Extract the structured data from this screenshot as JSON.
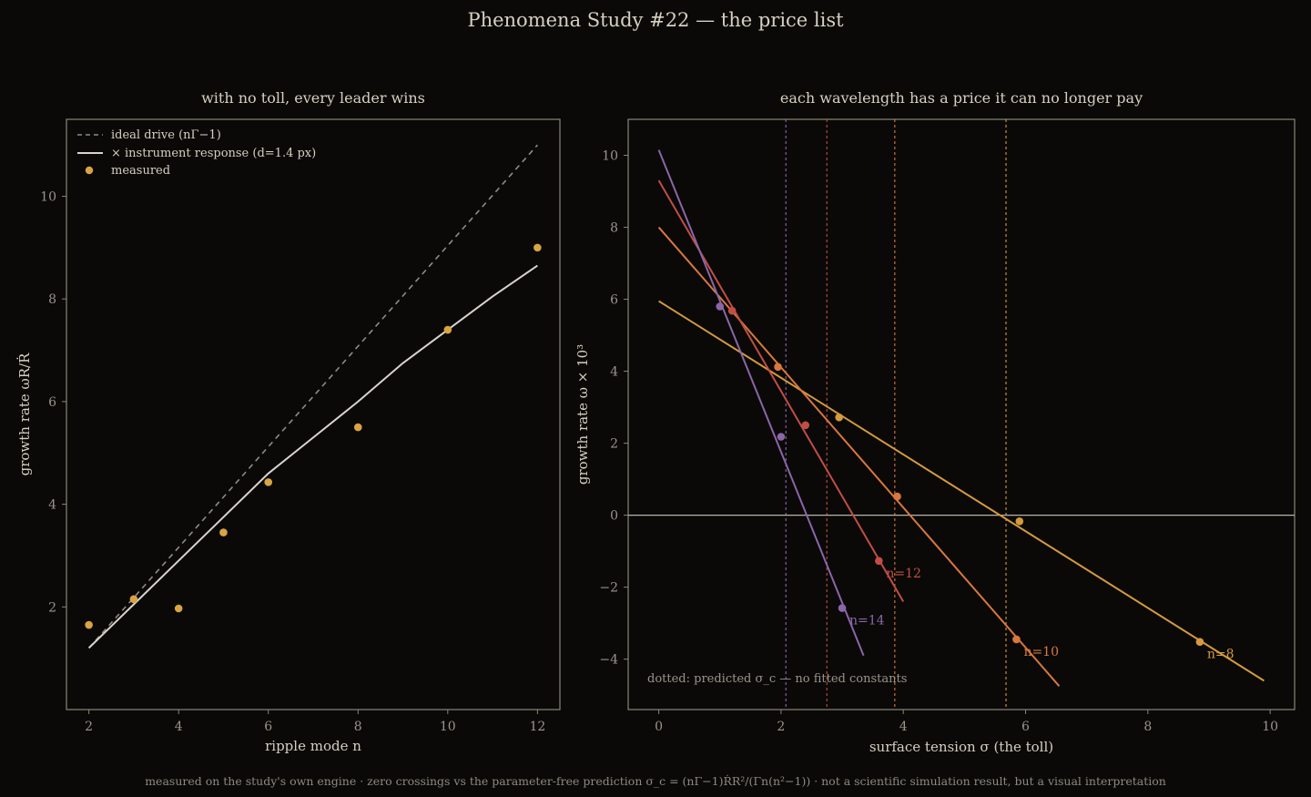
{
  "figure": {
    "suptitle": "Phenomena Study #22 — the price list",
    "footer": "measured on the study's own engine · zero crossings vs the parameter-free prediction σ_c = (nΓ−1)ṘR²/(Γn(n²−1)) · not a scientific simulation result, but a visual interpretation"
  },
  "colors": {
    "background": "#0a0908",
    "measured": "#d9a441",
    "ideal": "#8f8b82",
    "response": "#d8d4cc",
    "n8": "#d49a3e",
    "n10": "#d9773e",
    "n12": "#c14e45",
    "n14": "#8a66a8",
    "zero_line": "#b9b3a6"
  },
  "chart_data": [
    {
      "type": "line",
      "title": "with no toll, every leader wins",
      "xlabel": "ripple mode n",
      "ylabel": "growth rate   ωR/Ṙ",
      "xlim": [
        1.5,
        12.5
      ],
      "ylim": [
        0.0,
        11.5
      ],
      "xticks": [
        "2",
        "4",
        "6",
        "8",
        "10",
        "12"
      ],
      "yticks": [
        "2",
        "4",
        "6",
        "8",
        "10"
      ],
      "xtick_values": [
        2,
        4,
        6,
        8,
        10,
        12
      ],
      "ytick_values": [
        2,
        4,
        6,
        8,
        10
      ],
      "grid": false,
      "legend_position": "top-left",
      "series": [
        {
          "name": "ideal drive  (nΓ−1)",
          "style": "dashed",
          "x": [
            2,
            12
          ],
          "y": [
            1.2,
            11.0
          ]
        },
        {
          "name": "× instrument response (d=1.4 px)",
          "style": "solid",
          "x": [
            2,
            3,
            4,
            5,
            6,
            7,
            8,
            9,
            10,
            11,
            12
          ],
          "y": [
            1.2,
            2.05,
            2.9,
            3.75,
            4.6,
            5.3,
            6.0,
            6.75,
            7.4,
            8.05,
            8.65
          ]
        },
        {
          "name": "measured",
          "style": "markers",
          "x": [
            2,
            3,
            4,
            5,
            6,
            8,
            10,
            12
          ],
          "y": [
            1.65,
            2.15,
            1.97,
            3.45,
            4.43,
            5.5,
            7.4,
            9.0
          ]
        }
      ]
    },
    {
      "type": "line",
      "title": "each wavelength has a price it can no longer pay",
      "xlabel": "surface tension  σ   (the toll)",
      "ylabel": "growth rate   ω × 10³",
      "xlim": [
        -0.5,
        10.4
      ],
      "ylim": [
        -5.4,
        11.0
      ],
      "xticks": [
        "0",
        "2",
        "4",
        "6",
        "8",
        "10"
      ],
      "yticks": [
        "−4",
        "−2",
        "0",
        "2",
        "4",
        "6",
        "8",
        "10"
      ],
      "xtick_values": [
        0,
        2,
        4,
        6,
        8,
        10
      ],
      "ytick_values": [
        -4,
        -2,
        0,
        2,
        4,
        6,
        8,
        10
      ],
      "grid": false,
      "zero_line": 0,
      "annotation": "dotted: predicted σ_c — no fitted constants",
      "series": [
        {
          "label": "n=8",
          "color_key": "n8",
          "line": {
            "x": [
              0,
              9.9
            ],
            "y": [
              5.95,
              -4.6
            ]
          },
          "measured": {
            "x": [
              2.95,
              5.9,
              8.85
            ],
            "y": [
              2.72,
              -0.17,
              -3.52
            ]
          },
          "predicted_sigma_c": 5.68
        },
        {
          "label": "n=10",
          "color_key": "n10",
          "line": {
            "x": [
              0,
              6.55
            ],
            "y": [
              8.0,
              -4.75
            ]
          },
          "measured": {
            "x": [
              1.95,
              3.9,
              5.85
            ],
            "y": [
              4.12,
              0.52,
              -3.45
            ]
          },
          "predicted_sigma_c": 3.86
        },
        {
          "label": "n=12",
          "color_key": "n12",
          "line": {
            "x": [
              0,
              4.0
            ],
            "y": [
              9.3,
              -2.4
            ]
          },
          "measured": {
            "x": [
              1.2,
              2.4,
              3.6
            ],
            "y": [
              5.68,
              2.5,
              -1.27
            ]
          },
          "predicted_sigma_c": 2.75
        },
        {
          "label": "n=14",
          "color_key": "n14",
          "line": {
            "x": [
              0,
              3.35
            ],
            "y": [
              10.15,
              -3.9
            ]
          },
          "measured": {
            "x": [
              1.0,
              2.0,
              3.0
            ],
            "y": [
              5.8,
              2.18,
              -2.58
            ]
          },
          "predicted_sigma_c": 2.08
        }
      ]
    }
  ]
}
